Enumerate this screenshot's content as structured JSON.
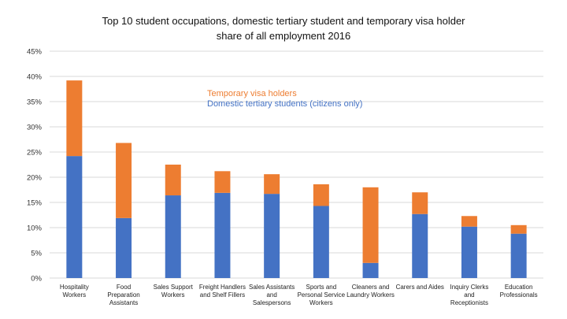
{
  "chart_data": {
    "type": "bar",
    "stacked": true,
    "title_lines": [
      "Top 10 student occupations, domestic tertiary student and temporary visa holder",
      "share of all employment 2016"
    ],
    "categories": [
      [
        "Hospitality",
        "Workers"
      ],
      [
        "Food",
        "Preparation",
        "Assistants"
      ],
      [
        "Sales Support",
        "Workers"
      ],
      [
        "Freight Handlers",
        "and Shelf Fillers"
      ],
      [
        "Sales Assistants",
        "and",
        "Salespersons"
      ],
      [
        "Sports and",
        "Personal Service",
        "Workers"
      ],
      [
        "Cleaners and",
        "Laundry Workers"
      ],
      [
        "Carers and Aides"
      ],
      [
        "Inquiry Clerks",
        "and",
        "Receptionists"
      ],
      [
        "Education",
        "Professionals"
      ]
    ],
    "series": [
      {
        "name": "Domestic tertiary students (citizens only)",
        "color": "#4472C4",
        "values": [
          24.2,
          11.9,
          16.4,
          16.9,
          16.7,
          14.3,
          3.0,
          12.7,
          10.2,
          8.8
        ]
      },
      {
        "name": "Temporary visa holders",
        "color": "#ED7D31",
        "values": [
          15.0,
          14.9,
          6.1,
          4.3,
          3.9,
          4.3,
          15.0,
          4.3,
          2.1,
          1.7
        ]
      }
    ],
    "ylim": [
      0,
      45
    ],
    "yticks": [
      "0%",
      "5%",
      "10%",
      "15%",
      "20%",
      "25%",
      "30%",
      "35%",
      "40%",
      "45%"
    ],
    "grid": true,
    "legend_placement": "top-center",
    "xlabel": "",
    "ylabel": ""
  }
}
